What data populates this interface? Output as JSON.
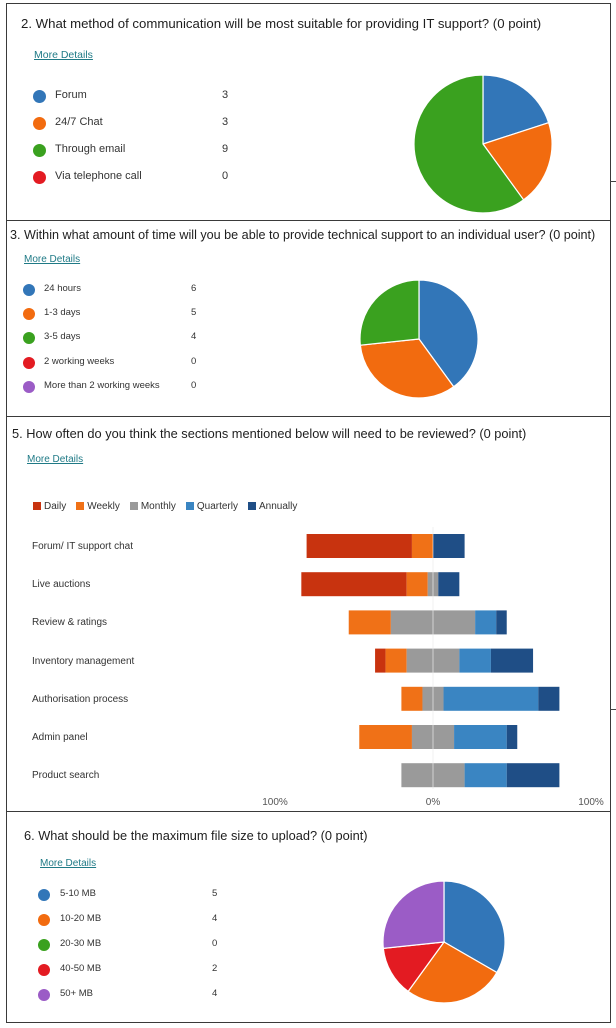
{
  "colors": {
    "blue": "#3276b8",
    "orange": "#f26b0f",
    "green": "#3aa11f",
    "red": "#e31b22",
    "purple": "#9b5cc6",
    "daily": "#c8330f",
    "weekly": "#f07117",
    "monthly": "#9a9a9a",
    "quarterly": "#3a85c2",
    "annually": "#1f4e86",
    "link": "#1f7a86"
  },
  "q2": {
    "title": "2.  What method of communication will be most suitable for providing IT support? (0 point)",
    "more_details": "More Details"
  },
  "q3": {
    "title": "3.  Within what amount of time will you be able to provide technical support to an individual user? (0 point)",
    "more_details": "More Details"
  },
  "q5": {
    "title": "5.  How often do you think the sections mentioned below will need to be reviewed? (0 point)",
    "more_details": "More Details"
  },
  "q6": {
    "title": "6.  What should be the maximum file size to upload? (0 point)",
    "more_details": "More Details"
  },
  "chart_data": [
    {
      "type": "pie",
      "categories": [
        "Forum",
        "24/7 Chat",
        "Through email",
        "Via telephone call"
      ],
      "values": [
        3,
        3,
        9,
        0
      ],
      "colors": [
        "#3276b8",
        "#f26b0f",
        "#3aa11f",
        "#e31b22"
      ],
      "legend_placement": "left"
    },
    {
      "type": "pie",
      "categories": [
        "24 hours",
        "1-3 days",
        "3-5 days",
        "2 working weeks",
        "More than 2 working weeks"
      ],
      "values": [
        6,
        5,
        4,
        0,
        0
      ],
      "colors": [
        "#3276b8",
        "#f26b0f",
        "#3aa11f",
        "#e31b22",
        "#9b5cc6"
      ],
      "legend_placement": "left"
    },
    {
      "type": "bar",
      "orientation": "horizontal-diverging",
      "series_names": [
        "Daily",
        "Weekly",
        "Monthly",
        "Quarterly",
        "Annually"
      ],
      "colors": [
        "#c8330f",
        "#f07117",
        "#9a9a9a",
        "#3a85c2",
        "#1f4e86"
      ],
      "categories": [
        "Forum/ IT support chat",
        "Live auctions",
        "Review & ratings",
        "Inventory management",
        "Authorisation process",
        "Admin panel",
        "Product search"
      ],
      "series": [
        {
          "name": "Daily",
          "values": [
            10,
            10,
            0,
            1,
            0,
            0,
            0
          ]
        },
        {
          "name": "Weekly",
          "values": [
            2,
            2,
            4,
            2,
            2,
            5,
            0
          ]
        },
        {
          "name": "Monthly",
          "values": [
            0,
            1,
            8,
            5,
            2,
            4,
            6
          ]
        },
        {
          "name": "Quarterly",
          "values": [
            0,
            0,
            2,
            3,
            9,
            5,
            4
          ]
        },
        {
          "name": "Annually",
          "values": [
            3,
            2,
            1,
            4,
            2,
            1,
            5
          ]
        }
      ],
      "xticks": [
        "100%",
        "0%",
        "100%"
      ],
      "legend_placement": "top-left",
      "grid": false
    },
    {
      "type": "pie",
      "categories": [
        "5-10 MB",
        "10-20 MB",
        "20-30 MB",
        "40-50 MB",
        "50+ MB"
      ],
      "values": [
        5,
        4,
        0,
        2,
        4
      ],
      "colors": [
        "#3276b8",
        "#f26b0f",
        "#3aa11f",
        "#e31b22",
        "#9b5cc6"
      ],
      "legend_placement": "left"
    }
  ]
}
